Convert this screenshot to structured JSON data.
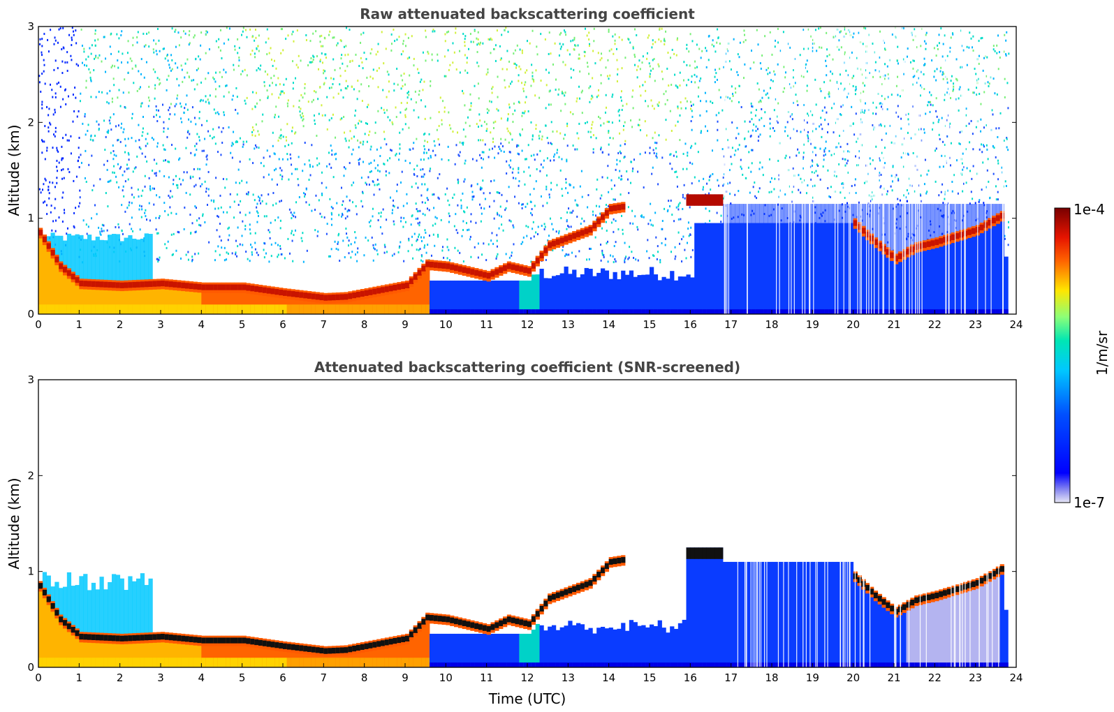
{
  "chart_data": [
    {
      "type": "heatmap",
      "title": "Raw attenuated backscattering coefficient",
      "xlabel": "",
      "ylabel": "Altitude (km)",
      "xlim": [
        0,
        24
      ],
      "ylim": [
        0,
        3
      ],
      "xticks": [
        "0",
        "1",
        "2",
        "3",
        "4",
        "5",
        "6",
        "7",
        "8",
        "9",
        "10",
        "11",
        "12",
        "13",
        "14",
        "15",
        "16",
        "17",
        "18",
        "19",
        "20",
        "21",
        "22",
        "23",
        "24"
      ],
      "yticks": [
        "0",
        "1",
        "2",
        "3"
      ],
      "screened": false,
      "layer_top_km": [
        [
          0,
          0.85
        ],
        [
          0.5,
          0.5
        ],
        [
          1,
          0.32
        ],
        [
          2,
          0.3
        ],
        [
          3,
          0.32
        ],
        [
          4,
          0.28
        ],
        [
          5,
          0.28
        ],
        [
          6,
          0.22
        ],
        [
          7,
          0.17
        ],
        [
          7.5,
          0.18
        ],
        [
          8,
          0.22
        ],
        [
          9,
          0.3
        ],
        [
          9.5,
          0.52
        ],
        [
          10,
          0.5
        ],
        [
          11,
          0.4
        ],
        [
          11.5,
          0.5
        ],
        [
          12,
          0.45
        ],
        [
          12.5,
          0.72
        ],
        [
          13,
          0.8
        ],
        [
          13.5,
          0.88
        ],
        [
          14,
          1.1
        ],
        [
          14.3,
          1.12
        ],
        [
          20,
          0.95
        ],
        [
          20.5,
          0.75
        ],
        [
          21,
          0.58
        ],
        [
          21.5,
          0.7
        ],
        [
          22,
          0.75
        ],
        [
          23,
          0.88
        ],
        [
          23.7,
          1.05
        ]
      ]
    },
    {
      "type": "heatmap",
      "title": "Attenuated backscattering coefficient (SNR-screened)",
      "xlabel": "Time (UTC)",
      "ylabel": "Altitude (km)",
      "xlim": [
        0,
        24
      ],
      "ylim": [
        0,
        3
      ],
      "xticks": [
        "0",
        "1",
        "2",
        "3",
        "4",
        "5",
        "6",
        "7",
        "8",
        "9",
        "10",
        "11",
        "12",
        "13",
        "14",
        "15",
        "16",
        "17",
        "18",
        "19",
        "20",
        "21",
        "22",
        "23",
        "24"
      ],
      "yticks": [
        "0",
        "1",
        "2",
        "3"
      ],
      "screened": true
    }
  ],
  "colorbar": {
    "label": "1/m/sr",
    "max_label": "1e-4",
    "min_label": "1e-7",
    "colormap": [
      "#e6e6f5",
      "#0000ff",
      "#00c8ff",
      "#8cff78",
      "#ffe600",
      "#ff6400",
      "#c80000",
      "#780000"
    ]
  }
}
